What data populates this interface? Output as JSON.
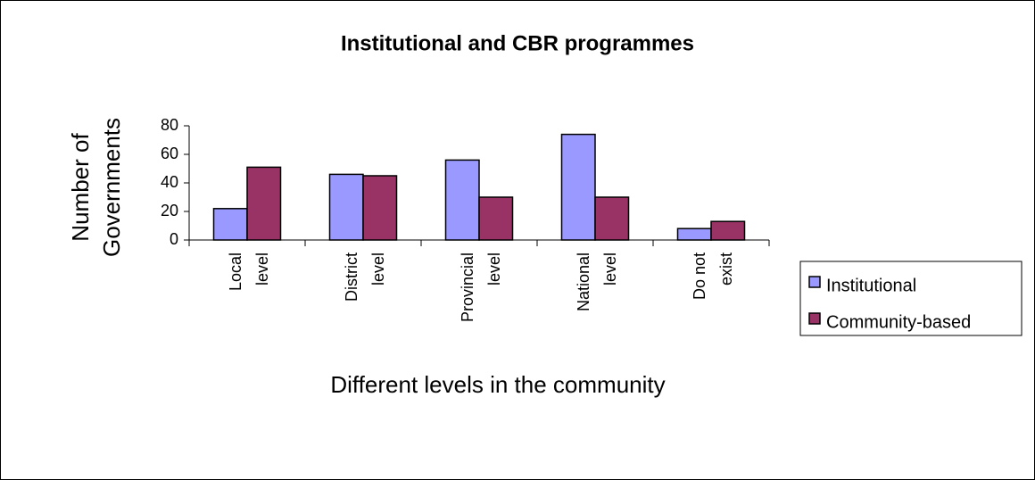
{
  "chart_data": {
    "type": "bar",
    "title": "Institutional and CBR programmes",
    "x_label": "Different levels in the community",
    "y_label": [
      "Number of",
      "Governments"
    ],
    "categories": [
      [
        "Local",
        "level"
      ],
      [
        "District",
        "level"
      ],
      [
        "Provincial",
        "level"
      ],
      [
        "National",
        "level"
      ],
      [
        "Do not",
        "exist"
      ]
    ],
    "series": [
      {
        "name": "Institutional",
        "color": "#9999ff",
        "values": [
          22,
          46,
          56,
          74,
          8
        ]
      },
      {
        "name": "Community-based",
        "color": "#993366",
        "values": [
          51,
          45,
          30,
          30,
          13
        ]
      }
    ],
    "ylim": [
      0,
      80
    ],
    "yticks": [
      0,
      20,
      40,
      60,
      80
    ],
    "grid": false,
    "legend": "right"
  }
}
